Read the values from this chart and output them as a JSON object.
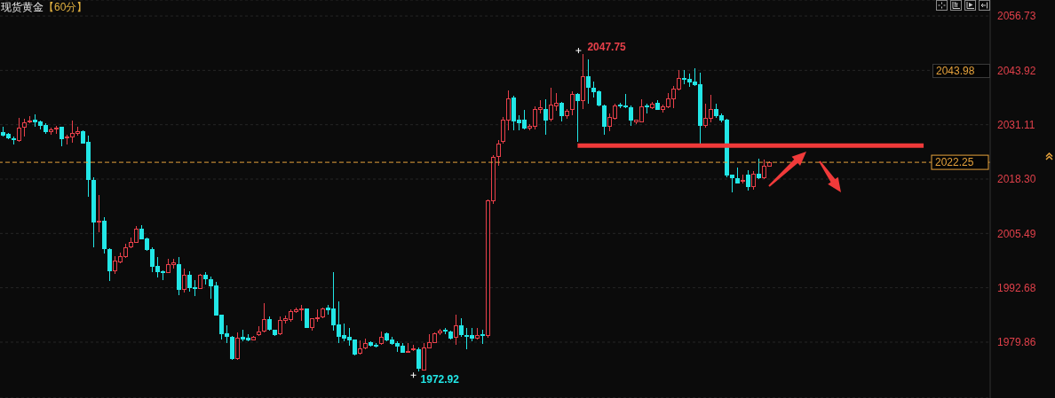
{
  "chart_data": {
    "type": "candlestick",
    "title": "现货黄金",
    "subtitle": "【60分】",
    "categories": [
      null,
      null,
      null,
      null,
      null,
      null,
      null,
      null,
      null,
      null,
      null,
      null,
      null,
      null,
      null,
      null,
      null,
      null,
      null,
      null,
      null,
      null,
      null,
      null,
      null,
      null,
      null,
      null,
      null,
      null,
      null,
      null,
      null,
      null,
      null,
      null,
      null,
      null,
      null,
      null,
      null,
      null,
      null,
      null,
      null,
      null,
      null,
      null,
      null,
      null,
      null,
      null,
      null,
      null,
      null,
      null,
      null,
      null,
      null,
      null,
      null,
      null,
      null,
      null,
      null,
      null,
      null,
      null,
      null,
      null,
      null,
      null,
      null,
      null,
      null,
      null,
      null,
      null,
      null,
      null,
      null,
      null,
      null,
      null,
      null,
      null,
      null,
      null,
      null,
      null,
      null,
      null,
      null,
      null,
      null,
      null,
      null,
      null,
      null,
      null,
      null,
      null,
      null,
      null,
      null,
      null,
      null,
      null,
      null,
      null,
      null,
      null,
      null,
      null,
      null,
      null,
      null,
      null,
      null,
      null,
      null,
      null,
      null,
      null,
      null,
      null,
      null,
      null,
      null,
      null,
      null,
      null,
      null,
      null,
      null,
      null,
      null,
      null,
      null,
      null,
      null,
      null,
      null,
      null,
      null,
      null,
      null,
      null,
      null,
      null,
      null,
      null,
      null,
      null,
      null,
      null,
      null,
      null,
      null,
      null,
      null,
      null,
      null,
      null,
      null,
      null,
      null,
      null,
      null,
      null,
      null,
      null,
      null,
      null,
      null,
      null,
      null,
      null,
      null,
      null,
      null,
      null,
      null,
      null,
      null,
      null
    ],
    "ohlc": [
      [
        2029.3,
        2030.7,
        2028.3,
        2028.6
      ],
      [
        2028.8,
        2029.1,
        2027.7,
        2028.0
      ],
      [
        2027.9,
        2028.4,
        2026.5,
        2027.5
      ],
      [
        2027.3,
        2032.8,
        2027.1,
        2030.4
      ],
      [
        2030.5,
        2032.6,
        2028.4,
        2031.6
      ],
      [
        2031.7,
        2033.2,
        2031.4,
        2031.9
      ],
      [
        2032.1,
        2033.5,
        2030.7,
        2031.8
      ],
      [
        2031.8,
        2032.1,
        2030.0,
        2030.9
      ],
      [
        2030.9,
        2031.4,
        2029.0,
        2029.4
      ],
      [
        2029.5,
        2030.5,
        2028.8,
        2029.8
      ],
      [
        2030.0,
        2030.9,
        2029.0,
        2030.3
      ],
      [
        2030.5,
        2030.7,
        2026.0,
        2027.8
      ],
      [
        2028.0,
        2028.8,
        2026.4,
        2028.3
      ],
      [
        2028.2,
        2032.1,
        2026.9,
        2029.1
      ],
      [
        2029.1,
        2030.7,
        2028.6,
        2029.4
      ],
      [
        2029.4,
        2029.7,
        2026.7,
        2026.8
      ],
      [
        2027.0,
        2028.6,
        2014.2,
        2018.1
      ],
      [
        2018.0,
        2018.8,
        2002.3,
        2008.1
      ],
      [
        2008.2,
        2014.5,
        2005.8,
        2008.4
      ],
      [
        2008.3,
        2009.3,
        2000.7,
        2001.8
      ],
      [
        2001.6,
        2002.0,
        1994.3,
        1996.6
      ],
      [
        1996.6,
        2000.2,
        1995.9,
        1998.9
      ],
      [
        1998.7,
        2000.9,
        1998.5,
        2000.1
      ],
      [
        2000.1,
        2003.0,
        1999.8,
        2002.2
      ],
      [
        2002.3,
        2004.6,
        2002.1,
        2003.4
      ],
      [
        2003.4,
        2007.2,
        2003.2,
        2006.5
      ],
      [
        2006.5,
        2007.4,
        2004.1,
        2004.3
      ],
      [
        2004.3,
        2004.6,
        2001.4,
        2001.6
      ],
      [
        2001.6,
        2002.3,
        1996.3,
        1997.7
      ],
      [
        1997.7,
        1999.9,
        1995.2,
        1996.4
      ],
      [
        1996.4,
        1996.8,
        1994.5,
        1996.2
      ],
      [
        1996.3,
        1999.4,
        1996.1,
        1998.2
      ],
      [
        1998.1,
        1999.4,
        1997.3,
        1998.5
      ],
      [
        1998.2,
        2000.0,
        1991.0,
        1992.2
      ],
      [
        1992.2,
        1997.2,
        1991.5,
        1995.6
      ],
      [
        1995.6,
        1996.6,
        1991.7,
        1992.8
      ],
      [
        1992.8,
        1994.5,
        1990.8,
        1992.6
      ],
      [
        1992.6,
        1995.9,
        1992.4,
        1995.6
      ],
      [
        1995.7,
        1996.4,
        1993.5,
        1994.7
      ],
      [
        1994.5,
        1995.4,
        1990.0,
        1993.1
      ],
      [
        1993.1,
        1994.0,
        1986.1,
        1986.2
      ],
      [
        1986.2,
        1986.4,
        1980.4,
        1981.8
      ],
      [
        1981.8,
        1983.9,
        1979.7,
        1981.2
      ],
      [
        1981.1,
        1981.3,
        1975.7,
        1976.1
      ],
      [
        1976.1,
        1982.1,
        1975.7,
        1980.9
      ],
      [
        1981.1,
        1982.8,
        1980.0,
        1980.5
      ],
      [
        1980.9,
        1981.8,
        1980.0,
        1980.4
      ],
      [
        1980.4,
        1981.4,
        1980.3,
        1981.1
      ],
      [
        1981.6,
        1983.7,
        1981.4,
        1982.3
      ],
      [
        1982.5,
        1989.1,
        1982.1,
        1985.1
      ],
      [
        1985.1,
        1986.0,
        1982.5,
        1982.8
      ],
      [
        1982.6,
        1982.8,
        1981.4,
        1981.6
      ],
      [
        1981.8,
        1986.0,
        1981.6,
        1984.9
      ],
      [
        1984.9,
        1986.1,
        1984.2,
        1985.4
      ],
      [
        1985.1,
        1987.5,
        1984.7,
        1987.0
      ],
      [
        1987.0,
        1988.0,
        1986.7,
        1987.4
      ],
      [
        1987.4,
        1988.6,
        1984.9,
        1987.7
      ],
      [
        1987.7,
        1987.9,
        1983.2,
        1983.3
      ],
      [
        1983.3,
        1985.6,
        1982.5,
        1985.3
      ],
      [
        1985.3,
        1987.5,
        1984.7,
        1985.6
      ],
      [
        1985.8,
        1988.1,
        1985.5,
        1987.7
      ],
      [
        1987.9,
        1988.7,
        1986.3,
        1987.5
      ],
      [
        1987.7,
        1996.4,
        1982.5,
        1983.9
      ],
      [
        1983.9,
        1989.4,
        1979.7,
        1981.2
      ],
      [
        1981.4,
        1984.2,
        1980.0,
        1980.9
      ],
      [
        1981.1,
        1983.3,
        1979.0,
        1980.4
      ],
      [
        1980.4,
        1980.5,
        1976.8,
        1977.0
      ],
      [
        1977.2,
        1980.3,
        1976.9,
        1978.3
      ],
      [
        1978.4,
        1980.7,
        1978.2,
        1979.6
      ],
      [
        1979.7,
        1980.0,
        1978.9,
        1979.1
      ],
      [
        1979.2,
        1979.6,
        1978.6,
        1979.0
      ],
      [
        1979.6,
        1982.3,
        1979.3,
        1981.1
      ],
      [
        1981.9,
        1982.1,
        1980.0,
        1980.3
      ],
      [
        1980.3,
        1981.2,
        1979.3,
        1979.6
      ],
      [
        1979.6,
        1980.0,
        1977.5,
        1979.0
      ],
      [
        1978.9,
        1979.7,
        1977.3,
        1977.5
      ],
      [
        1977.5,
        1979.6,
        1977.3,
        1977.7
      ],
      [
        1978.0,
        1979.3,
        1977.7,
        1978.2
      ],
      [
        1978.1,
        1978.6,
        1972.92,
        1973.8
      ],
      [
        1973.3,
        1979.7,
        1973.1,
        1978.4
      ],
      [
        1978.6,
        1981.8,
        1978.4,
        1979.7
      ],
      [
        1979.7,
        1982.1,
        1979.6,
        1981.9
      ],
      [
        1982.1,
        1983.0,
        1981.6,
        1982.5
      ],
      [
        1982.6,
        1983.2,
        1981.8,
        1982.4
      ],
      [
        1982.3,
        1982.6,
        1980.5,
        1980.9
      ],
      [
        1981.1,
        1986.3,
        1979.3,
        1983.7
      ],
      [
        1983.7,
        1985.6,
        1981.1,
        1981.6
      ],
      [
        1981.4,
        1983.3,
        1978.2,
        1981.2
      ],
      [
        1981.4,
        1983.3,
        1980.1,
        1980.7
      ],
      [
        1980.7,
        1983.2,
        1980.5,
        1981.4
      ],
      [
        1981.6,
        1982.8,
        1979.4,
        1981.4
      ],
      [
        1981.4,
        2013.5,
        1981.0,
        2013.1
      ],
      [
        2013.1,
        2023.9,
        2012.4,
        2023.4
      ],
      [
        2023.6,
        2027.4,
        2021.5,
        2026.6
      ],
      [
        2027.2,
        2033.0,
        2026.7,
        2032.1
      ],
      [
        2032.1,
        2039.2,
        2029.7,
        2037.3
      ],
      [
        2037.5,
        2037.9,
        2029.7,
        2031.9
      ],
      [
        2032.1,
        2033.3,
        2029.8,
        2031.6
      ],
      [
        2032.1,
        2034.6,
        2030.1,
        2030.4
      ],
      [
        2030.3,
        2031.2,
        2029.8,
        2030.7
      ],
      [
        2030.7,
        2035.5,
        2030.1,
        2034.6
      ],
      [
        2034.6,
        2036.8,
        2033.7,
        2035.1
      ],
      [
        2034.7,
        2037.2,
        2028.8,
        2032.1
      ],
      [
        2032.3,
        2039.9,
        2031.9,
        2035.8
      ],
      [
        2035.6,
        2038.5,
        2034.4,
        2036.1
      ],
      [
        2036.1,
        2036.5,
        2031.9,
        2033.3
      ],
      [
        2033.3,
        2034.7,
        2032.6,
        2034.2
      ],
      [
        2034.6,
        2038.9,
        2033.3,
        2038.2
      ],
      [
        2038.3,
        2038.5,
        2027.1,
        2036.8
      ],
      [
        2036.8,
        2047.75,
        2034.7,
        2042.5
      ],
      [
        2042.5,
        2046.6,
        2036.1,
        2039.9
      ],
      [
        2039.7,
        2041.3,
        2037.5,
        2038.9
      ],
      [
        2038.9,
        2039.2,
        2035.4,
        2035.8
      ],
      [
        2035.6,
        2035.8,
        2028.8,
        2030.7
      ],
      [
        2030.7,
        2033.7,
        2029.5,
        2032.8
      ],
      [
        2032.6,
        2036.1,
        2032.3,
        2035.6
      ],
      [
        2035.8,
        2036.3,
        2035.1,
        2035.5
      ],
      [
        2035.6,
        2038.3,
        2035.1,
        2035.4
      ],
      [
        2035.1,
        2035.6,
        2030.9,
        2032.1
      ],
      [
        2031.8,
        2032.3,
        2031.2,
        2032.1
      ],
      [
        2031.8,
        2037.2,
        2031.6,
        2035.4
      ],
      [
        2035.6,
        2036.1,
        2033.7,
        2035.3
      ],
      [
        2035.1,
        2036.5,
        2034.9,
        2036.0
      ],
      [
        2036.1,
        2036.8,
        2034.6,
        2034.7
      ],
      [
        2034.7,
        2035.8,
        2034.0,
        2035.4
      ],
      [
        2035.4,
        2038.5,
        2035.1,
        2037.3
      ],
      [
        2037.3,
        2040.3,
        2035.1,
        2039.5
      ],
      [
        2039.5,
        2043.9,
        2039.2,
        2042.0
      ],
      [
        2042.0,
        2044.1,
        2040.6,
        2041.8
      ],
      [
        2041.8,
        2043.1,
        2040.0,
        2041.1
      ],
      [
        2041.1,
        2044.5,
        2040.3,
        2040.6
      ],
      [
        2040.6,
        2043.4,
        2026.7,
        2030.9
      ],
      [
        2030.9,
        2036.1,
        2030.5,
        2032.6
      ],
      [
        2032.6,
        2038.2,
        2031.6,
        2034.6
      ],
      [
        2034.6,
        2036.1,
        2032.8,
        2033.3
      ],
      [
        2033.3,
        2033.7,
        2031.6,
        2032.1
      ],
      [
        2032.1,
        2032.6,
        2018.7,
        2019.3
      ],
      [
        2019.2,
        2019.4,
        2015.2,
        2018.6
      ],
      [
        2018.5,
        2021.1,
        2017.3,
        2017.4
      ],
      [
        2017.8,
        2019.4,
        2017.3,
        2018.0
      ],
      [
        2019.2,
        2020.4,
        2015.6,
        2016.6
      ],
      [
        2016.6,
        2020.1,
        2015.8,
        2019.5
      ],
      [
        2019.5,
        2023.2,
        2018.4,
        2018.7
      ],
      [
        2018.7,
        2023.0,
        2018.4,
        2021.3
      ],
      [
        2021.4,
        2022.4,
        2021.2,
        2022.25
      ],
      null,
      null,
      null,
      null,
      null,
      null,
      null,
      null,
      null,
      null,
      null,
      null,
      null,
      null,
      null,
      null,
      null,
      null,
      null,
      null,
      null,
      null,
      null,
      null,
      null,
      null,
      null,
      null,
      null,
      null,
      null,
      null,
      null,
      null,
      null,
      null,
      null,
      null,
      null,
      null,
      null
    ],
    "value_labels": [
      null,
      null,
      null,
      null,
      null,
      null,
      null,
      null,
      null,
      null,
      null,
      null,
      null,
      null,
      null,
      null,
      null,
      null,
      null,
      null,
      null,
      null,
      null,
      null,
      null,
      null,
      null,
      null,
      null,
      null,
      null,
      null,
      null,
      null,
      null,
      null,
      null,
      null,
      null,
      null,
      null,
      null,
      null,
      null,
      null,
      null,
      null,
      null,
      null,
      null,
      null,
      null,
      null,
      null,
      null,
      null,
      null,
      null,
      null,
      null,
      null,
      null,
      null,
      null,
      null,
      null,
      null,
      null,
      null,
      null,
      null,
      null,
      null,
      null,
      null,
      null,
      null,
      null,
      "1972.92",
      null,
      null,
      null,
      null,
      null,
      null,
      null,
      null,
      null,
      null,
      null,
      null,
      null,
      null,
      null,
      null,
      null,
      null,
      null,
      null,
      null,
      null,
      null,
      null,
      null,
      null,
      null,
      null,
      null,
      null,
      "2047.75",
      null,
      null,
      null,
      null,
      null,
      null,
      null,
      null,
      null,
      null,
      null,
      null,
      null,
      null,
      null,
      null,
      null,
      null,
      null,
      null,
      null,
      null,
      null,
      null,
      null,
      null,
      null,
      null,
      null,
      null,
      null,
      null,
      null,
      null,
      null,
      null,
      null,
      null,
      null,
      null,
      null,
      null,
      null,
      null,
      null,
      null,
      null,
      null,
      null,
      null,
      null,
      null,
      null,
      null,
      null,
      null,
      null,
      null,
      null,
      null,
      null,
      null,
      null,
      null,
      null,
      null,
      null,
      null,
      null,
      null,
      null,
      null,
      null,
      null,
      null,
      null
    ],
    "colors": [
      "#22e6e6",
      "#22e6e6",
      "#22e6e6",
      "#e8404a",
      "#e8404a",
      "#e8404a",
      "#22e6e6",
      "#22e6e6",
      "#22e6e6",
      "#e8404a",
      "#e8404a",
      "#22e6e6",
      "#e8404a",
      "#e8404a",
      "#e8404a",
      "#22e6e6",
      "#22e6e6",
      "#22e6e6",
      "#e8404a",
      "#22e6e6",
      "#22e6e6",
      "#e8404a",
      "#e8404a",
      "#e8404a",
      "#e8404a",
      "#e8404a",
      "#22e6e6",
      "#22e6e6",
      "#22e6e6",
      "#22e6e6",
      "#22e6e6",
      "#e8404a",
      "#e8404a",
      "#22e6e6",
      "#e8404a",
      "#22e6e6",
      "#22e6e6",
      "#e8404a",
      "#22e6e6",
      "#22e6e6",
      "#22e6e6",
      "#22e6e6",
      "#22e6e6",
      "#22e6e6",
      "#e8404a",
      "#22e6e6",
      "#22e6e6",
      "#e8404a",
      "#e8404a",
      "#e8404a",
      "#22e6e6",
      "#22e6e6",
      "#e8404a",
      "#e8404a",
      "#e8404a",
      "#e8404a",
      "#e8404a",
      "#22e6e6",
      "#e8404a",
      "#e8404a",
      "#e8404a",
      "#22e6e6",
      "#22e6e6",
      "#22e6e6",
      "#22e6e6",
      "#22e6e6",
      "#22e6e6",
      "#e8404a",
      "#e8404a",
      "#22e6e6",
      "#22e6e6",
      "#e8404a",
      "#22e6e6",
      "#22e6e6",
      "#22e6e6",
      "#22e6e6",
      "#e8404a",
      "#e8404a",
      "#22e6e6",
      "#e8404a",
      "#e8404a",
      "#e8404a",
      "#e8404a",
      "#22e6e6",
      "#22e6e6",
      "#e8404a",
      "#22e6e6",
      "#22e6e6",
      "#22e6e6",
      "#e8404a",
      "#22e6e6",
      "#e8404a",
      "#e8404a",
      "#e8404a",
      "#e8404a",
      "#e8404a",
      "#22e6e6",
      "#22e6e6",
      "#22e6e6",
      "#e8404a",
      "#e8404a",
      "#e8404a",
      "#22e6e6",
      "#e8404a",
      "#e8404a",
      "#22e6e6",
      "#e8404a",
      "#e8404a",
      "#22e6e6",
      "#e8404a",
      "#22e6e6",
      "#22e6e6",
      "#22e6e6",
      "#22e6e6",
      "#e8404a",
      "#e8404a",
      "#22e6e6",
      "#22e6e6",
      "#22e6e6",
      "#e8404a",
      "#e8404a",
      "#22e6e6",
      "#e8404a",
      "#22e6e6",
      "#e8404a",
      "#e8404a",
      "#e8404a",
      "#e8404a",
      "#22e6e6",
      "#22e6e6",
      "#22e6e6",
      "#22e6e6",
      "#e8404a",
      "#e8404a",
      "#22e6e6",
      "#22e6e6",
      "#22e6e6",
      "#22e6e6",
      "#22e6e6",
      "#e8404a",
      "#22e6e6",
      "#e8404a",
      "#22e6e6",
      "#e8404a",
      "#e8404a",
      null,
      null,
      null,
      null,
      null,
      null,
      null,
      null,
      null,
      null,
      null,
      null,
      null,
      null,
      null,
      null,
      null,
      null,
      null,
      null,
      null,
      null,
      null,
      null,
      null,
      null,
      null,
      null,
      null,
      null,
      null,
      null,
      null,
      null,
      null,
      null,
      null,
      null,
      null,
      null,
      null
    ],
    "series": [
      {
        "type": "line",
        "color": "#f03a3a",
        "values": [
          null,
          null,
          null,
          null,
          null,
          null,
          null,
          null,
          null,
          null,
          null,
          null,
          null,
          null,
          null,
          null,
          null,
          null,
          null,
          null,
          null,
          null,
          null,
          null,
          null,
          null,
          null,
          null,
          null,
          null,
          null,
          null,
          null,
          null,
          null,
          null,
          null,
          null,
          null,
          null,
          null,
          null,
          null,
          null,
          null,
          null,
          null,
          null,
          null,
          null,
          null,
          null,
          null,
          null,
          null,
          null,
          null,
          null,
          null,
          null,
          null,
          null,
          null,
          null,
          null,
          null,
          null,
          null,
          null,
          null,
          null,
          null,
          null,
          null,
          null,
          null,
          null,
          null,
          null,
          null,
          null,
          null,
          null,
          null,
          null,
          null,
          null,
          null,
          null,
          null,
          null,
          null,
          null,
          null,
          null,
          null,
          null,
          null,
          null,
          null,
          null,
          null,
          null,
          null,
          null,
          null,
          null,
          null,
          2026.2,
          2026.2,
          2026.2,
          2026.2,
          2026.2,
          2026.2,
          2026.2,
          2026.2,
          2026.2,
          2026.2,
          2026.2,
          2026.2,
          2026.2,
          2026.2,
          2026.2,
          2026.2,
          2026.2,
          2026.2,
          2026.2,
          2026.2,
          2026.2,
          2026.2,
          2026.2,
          2026.2,
          2026.2,
          2026.2,
          2026.2,
          2026.2,
          2026.2,
          2026.2,
          2026.2,
          2026.2,
          2026.2,
          2026.2,
          2026.2,
          2026.2,
          2026.2,
          2026.2,
          2026.2,
          2026.2,
          2026.2,
          2026.2,
          2026.2,
          2026.2,
          2026.2,
          2026.2,
          2026.2,
          2026.2,
          2026.2,
          2026.2,
          2026.2,
          2026.2,
          2026.2,
          2026.2,
          2026.2,
          2026.2,
          2026.2,
          2026.2,
          2026.2,
          2026.2,
          2026.2,
          2026.2,
          2026.2,
          2026.2,
          2026.2,
          2026.2,
          null,
          null,
          null,
          null,
          null,
          null,
          null,
          null,
          null,
          null,
          null,
          null
        ]
      }
    ],
    "ylim": [
      1966.7,
      2060.5
    ],
    "yticks": [
      2056.73,
      2043.92,
      2031.11,
      {
        "value": 2018.3,
        "label": "2018.30"
      },
      2005.49,
      1992.68,
      1979.86
    ],
    "grid": "y",
    "tick_labels": "y",
    "ref_lines": [
      {
        "axis": "y",
        "value": 2022.25,
        "label": "2022.25",
        "color": "#e6a23c",
        "line_style": "dashed"
      }
    ],
    "annotations": [
      "2043.98"
    ]
  }
}
